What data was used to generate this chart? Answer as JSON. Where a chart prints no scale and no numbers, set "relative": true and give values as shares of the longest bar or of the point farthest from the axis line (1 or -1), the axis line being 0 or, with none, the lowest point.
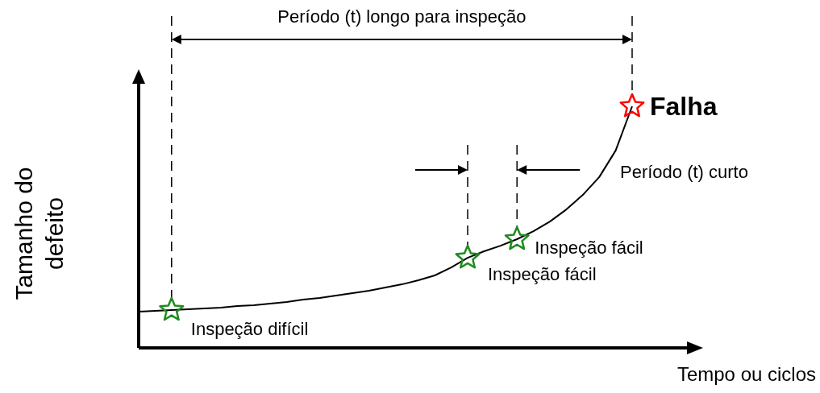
{
  "chart_data": {
    "type": "line",
    "relative": true,
    "title": "Período (t) longo para inspeção",
    "xlabel": "Tempo ou ciclos",
    "ylabel": "Tamanho do defeito",
    "categories": [
      null,
      null,
      null,
      null,
      null,
      null,
      null,
      null,
      null,
      null,
      null,
      null,
      null,
      null,
      null,
      null,
      null,
      null,
      null,
      null,
      null,
      null,
      null,
      null,
      null,
      null,
      null,
      null,
      null,
      null,
      null
    ],
    "series": [
      {
        "color": "#000000",
        "values": [
          0.15,
          0.153,
          0.157,
          0.16,
          0.163,
          0.167,
          0.173,
          0.177,
          0.183,
          0.19,
          0.2,
          0.207,
          0.217,
          0.227,
          0.237,
          0.25,
          0.263,
          0.28,
          0.3,
          0.333,
          0.373,
          0.4,
          0.423,
          0.45,
          0.483,
          0.523,
          0.573,
          0.633,
          0.707,
          0.817,
          1
        ]
      }
    ],
    "annotations": [
      "Inspeção difícil",
      "Inspeção fácil",
      "Inspeção fácil",
      "Falha",
      "Período (t) curto"
    ]
  }
}
